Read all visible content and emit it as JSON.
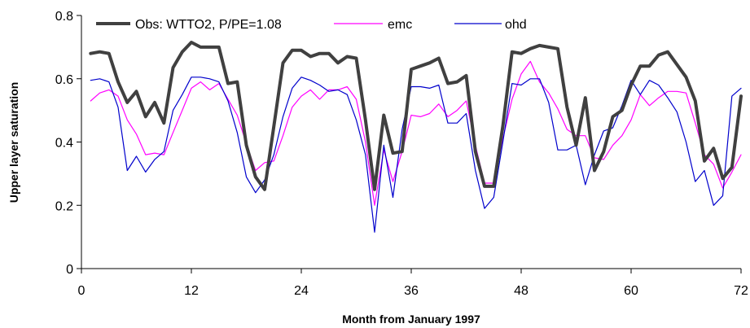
{
  "chart_data": {
    "type": "line",
    "xlabel": "Month from January 1997",
    "ylabel": "Upper layer saturation",
    "xlim": [
      0,
      72
    ],
    "ylim": [
      0,
      0.8
    ],
    "xticks": [
      0,
      12,
      24,
      36,
      48,
      60,
      72
    ],
    "yticks": [
      0,
      0.2,
      0.4,
      0.6,
      0.8
    ],
    "ytick_labels": [
      "0",
      "0.2",
      "0.4",
      "0.6",
      "0.8"
    ],
    "grid": false,
    "legend_position": "top",
    "x": [
      1,
      2,
      3,
      4,
      5,
      6,
      7,
      8,
      9,
      10,
      11,
      12,
      13,
      14,
      15,
      16,
      17,
      18,
      19,
      20,
      21,
      22,
      23,
      24,
      25,
      26,
      27,
      28,
      29,
      30,
      31,
      32,
      33,
      34,
      35,
      36,
      37,
      38,
      39,
      40,
      41,
      42,
      43,
      44,
      45,
      46,
      47,
      48,
      49,
      50,
      51,
      52,
      53,
      54,
      55,
      56,
      57,
      58,
      59,
      60,
      61,
      62,
      63,
      64,
      65,
      66,
      67,
      68,
      69,
      70,
      71,
      72
    ],
    "series": [
      {
        "name": "Obs: WTTO2, P/PE=1.08",
        "color": "#404040",
        "values": [
          0.68,
          0.685,
          0.68,
          0.59,
          0.525,
          0.56,
          0.48,
          0.525,
          0.46,
          0.635,
          0.685,
          0.715,
          0.7,
          0.7,
          0.7,
          0.585,
          0.59,
          0.39,
          0.29,
          0.25,
          0.45,
          0.65,
          0.69,
          0.69,
          0.67,
          0.68,
          0.68,
          0.65,
          0.67,
          0.665,
          0.47,
          0.25,
          0.485,
          0.365,
          0.37,
          0.63,
          0.64,
          0.65,
          0.665,
          0.585,
          0.59,
          0.61,
          0.37,
          0.26,
          0.26,
          0.45,
          0.685,
          0.68,
          0.695,
          0.705,
          0.7,
          0.695,
          0.51,
          0.39,
          0.54,
          0.31,
          0.37,
          0.48,
          0.5,
          0.58,
          0.64,
          0.64,
          0.675,
          0.685,
          0.645,
          0.605,
          0.53,
          0.34,
          0.38,
          0.285,
          0.32,
          0.545
        ]
      },
      {
        "name": "emc",
        "color": "#ff00ff",
        "values": [
          0.53,
          0.555,
          0.565,
          0.545,
          0.47,
          0.425,
          0.36,
          0.365,
          0.36,
          0.43,
          0.5,
          0.57,
          0.59,
          0.565,
          0.585,
          0.535,
          0.485,
          0.395,
          0.31,
          0.335,
          0.34,
          0.42,
          0.51,
          0.545,
          0.565,
          0.535,
          0.565,
          0.565,
          0.575,
          0.535,
          0.4,
          0.2,
          0.375,
          0.275,
          0.37,
          0.485,
          0.48,
          0.49,
          0.52,
          0.48,
          0.5,
          0.53,
          0.39,
          0.27,
          0.27,
          0.41,
          0.535,
          0.615,
          0.655,
          0.59,
          0.555,
          0.505,
          0.44,
          0.42,
          0.42,
          0.35,
          0.345,
          0.39,
          0.42,
          0.47,
          0.55,
          0.515,
          0.54,
          0.56,
          0.56,
          0.555,
          0.46,
          0.36,
          0.33,
          0.255,
          0.305,
          0.36
        ]
      },
      {
        "name": "ohd",
        "color": "#0000cc",
        "values": [
          0.595,
          0.6,
          0.59,
          0.51,
          0.31,
          0.355,
          0.305,
          0.345,
          0.37,
          0.5,
          0.55,
          0.605,
          0.605,
          0.6,
          0.59,
          0.53,
          0.43,
          0.29,
          0.24,
          0.28,
          0.36,
          0.48,
          0.57,
          0.605,
          0.595,
          0.58,
          0.56,
          0.565,
          0.55,
          0.47,
          0.36,
          0.115,
          0.39,
          0.225,
          0.44,
          0.575,
          0.575,
          0.57,
          0.58,
          0.46,
          0.46,
          0.49,
          0.31,
          0.19,
          0.225,
          0.4,
          0.585,
          0.58,
          0.6,
          0.6,
          0.525,
          0.375,
          0.375,
          0.39,
          0.265,
          0.36,
          0.435,
          0.445,
          0.515,
          0.595,
          0.55,
          0.595,
          0.58,
          0.54,
          0.495,
          0.4,
          0.275,
          0.31,
          0.2,
          0.23,
          0.545,
          0.57
        ]
      }
    ]
  }
}
